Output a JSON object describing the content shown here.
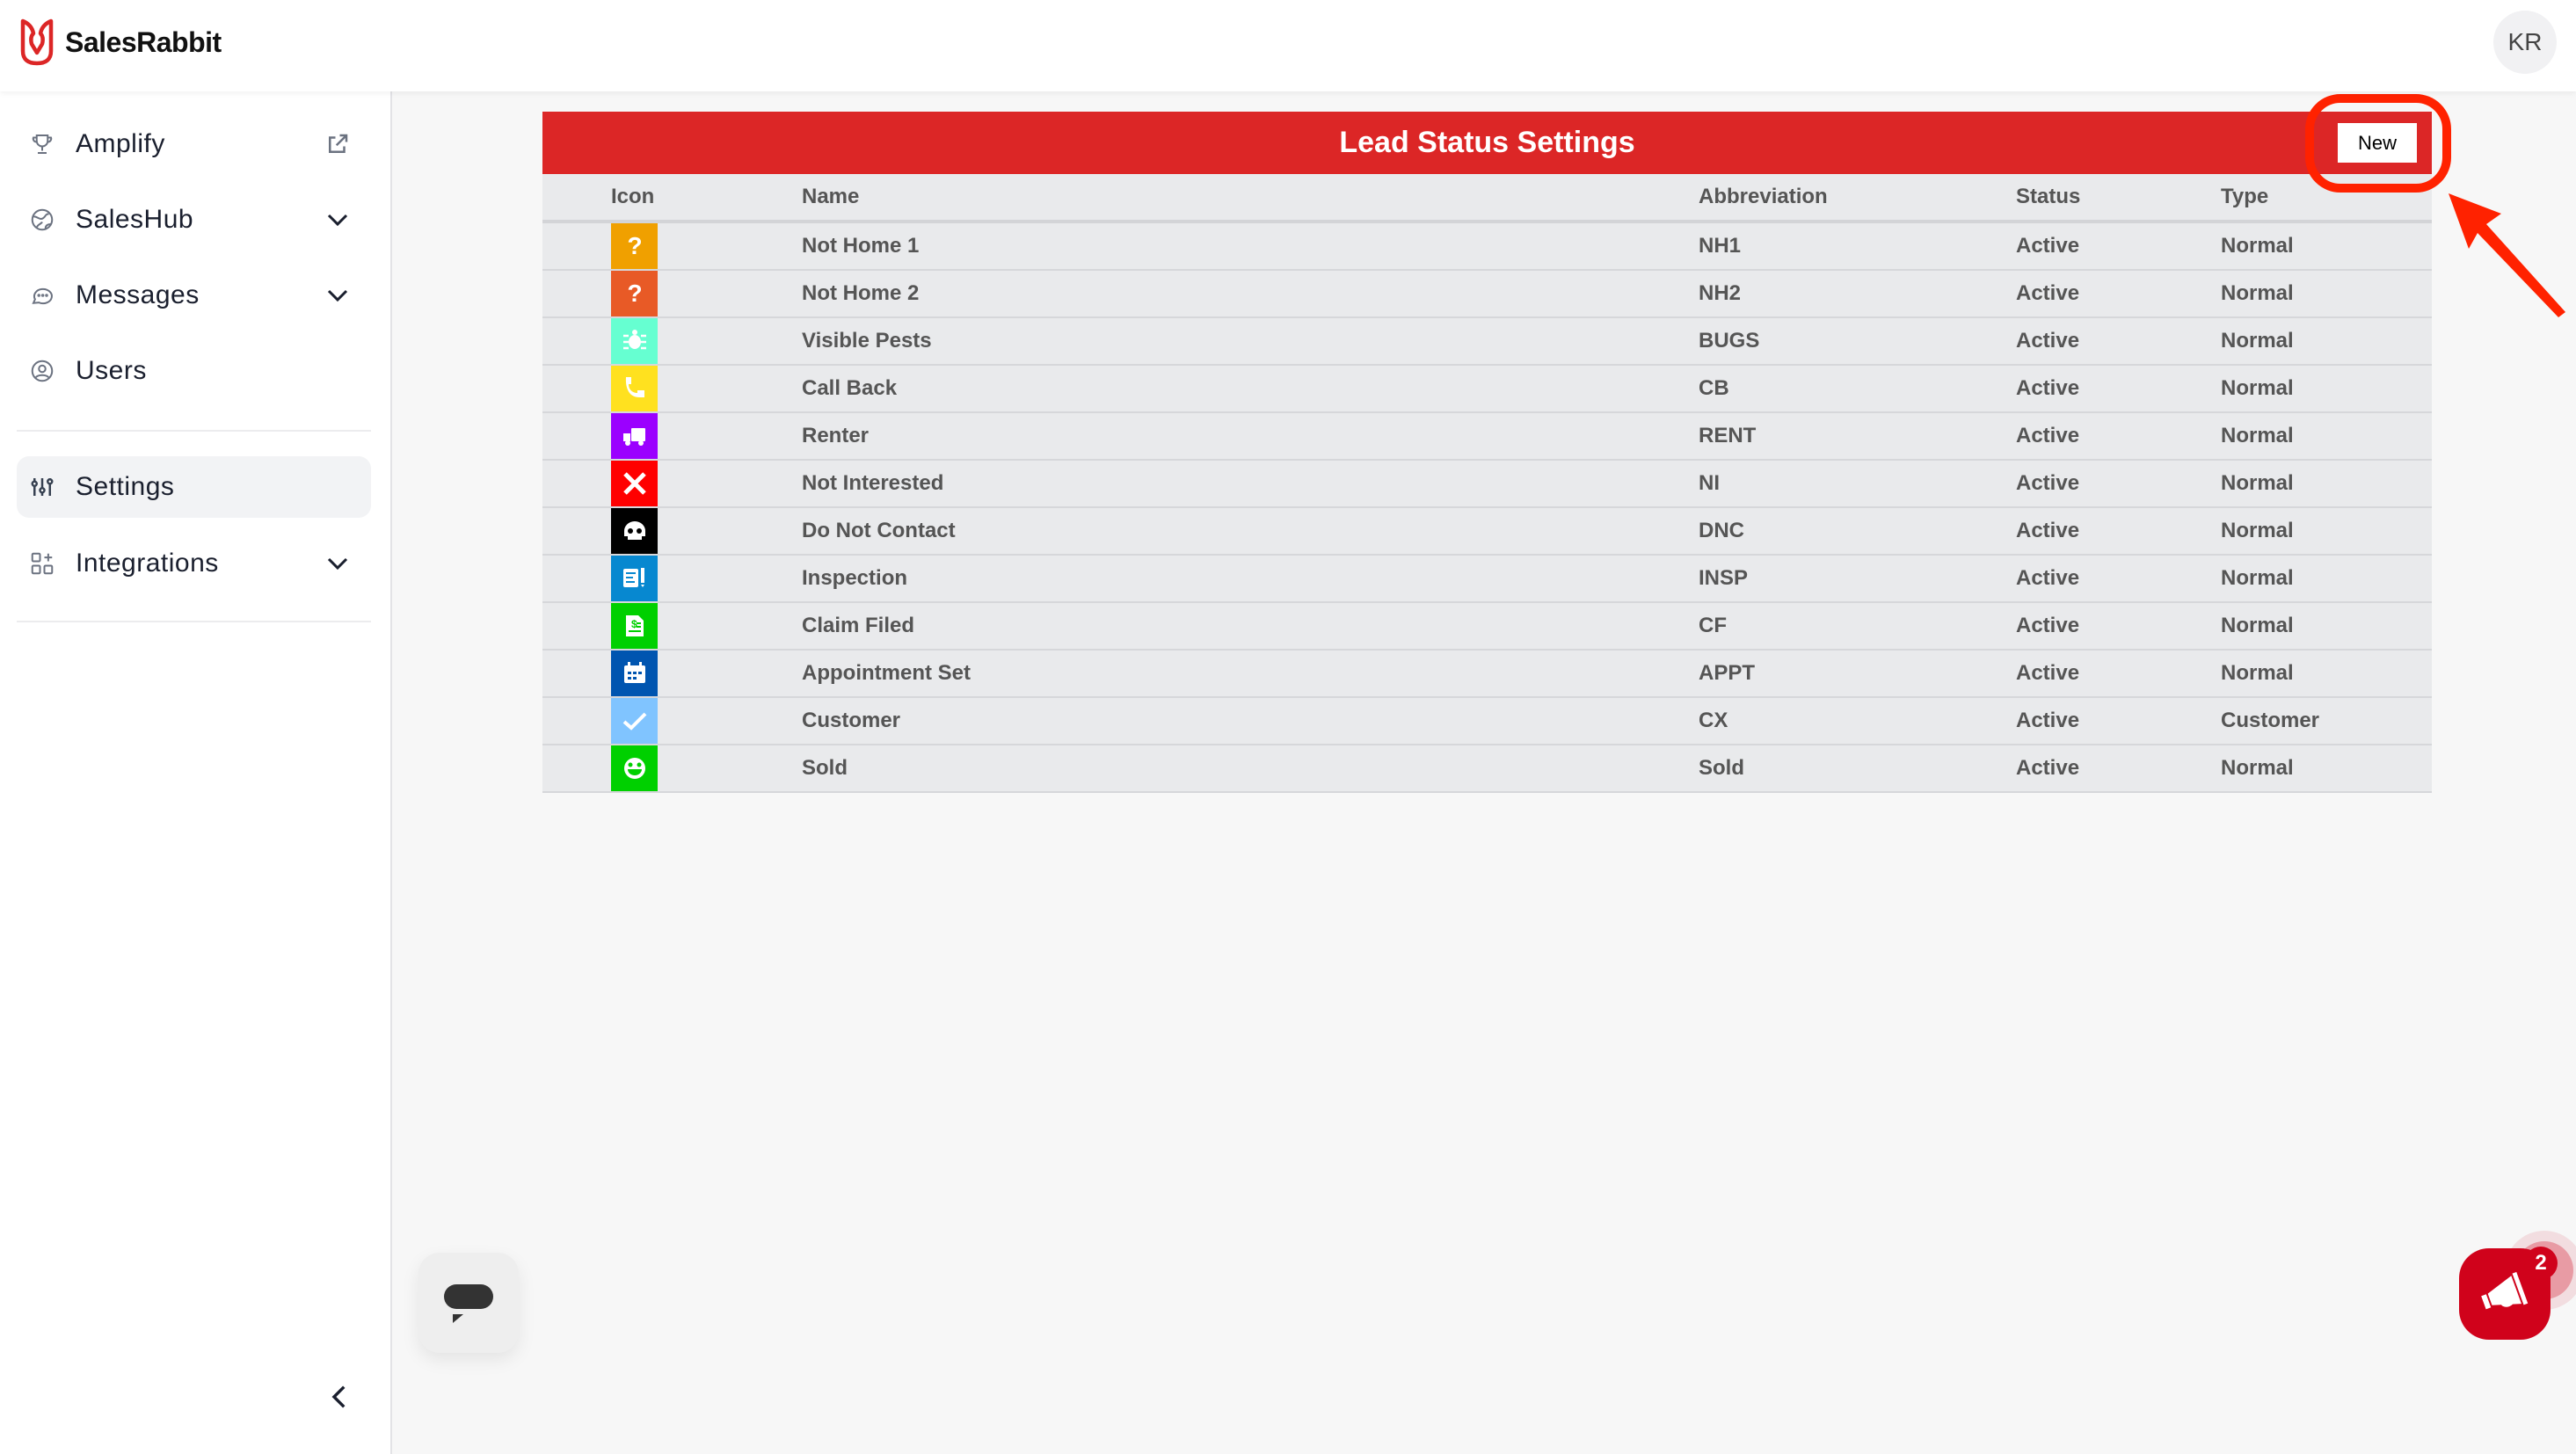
{
  "header": {
    "brand": "SalesRabbit",
    "avatar_initials": "KR",
    "brand_color": "#dc2626"
  },
  "sidebar": {
    "items": [
      {
        "label": "Amplify",
        "icon": "trophy-icon",
        "trail": "external-link-icon"
      },
      {
        "label": "SalesHub",
        "icon": "globe-icon",
        "trail": "chevron-down-icon"
      },
      {
        "label": "Messages",
        "icon": "chat-bubble-icon",
        "trail": "chevron-down-icon"
      },
      {
        "label": "Users",
        "icon": "user-circle-icon"
      },
      {
        "label": "Settings",
        "icon": "sliders-icon",
        "active": true
      },
      {
        "label": "Integrations",
        "icon": "apps-add-icon",
        "trail": "chevron-down-icon"
      }
    ]
  },
  "main": {
    "title": "Lead Status Settings",
    "new_label": "New",
    "columns": [
      "Icon",
      "Name",
      "Abbreviation",
      "Status",
      "Type"
    ],
    "rows": [
      {
        "icon": "question-icon",
        "color": "#f0a000",
        "name": "Not Home 1",
        "abbr": "NH1",
        "status": "Active",
        "type": "Normal"
      },
      {
        "icon": "question-icon",
        "color": "#e85a26",
        "name": "Not Home 2",
        "abbr": "NH2",
        "status": "Active",
        "type": "Normal"
      },
      {
        "icon": "bug-icon",
        "color": "#66ffd1",
        "name": "Visible Pests",
        "abbr": "BUGS",
        "status": "Active",
        "type": "Normal"
      },
      {
        "icon": "phone-icon",
        "color": "#ffe11f",
        "name": "Call Back",
        "abbr": "CB",
        "status": "Active",
        "type": "Normal"
      },
      {
        "icon": "truck-icon",
        "color": "#9b00ff",
        "name": "Renter",
        "abbr": "RENT",
        "status": "Active",
        "type": "Normal"
      },
      {
        "icon": "x-icon",
        "color": "#ff0000",
        "name": "Not Interested",
        "abbr": "NI",
        "status": "Active",
        "type": "Normal"
      },
      {
        "icon": "skull-icon",
        "color": "#000000",
        "name": "Do Not Contact",
        "abbr": "DNC",
        "status": "Active",
        "type": "Normal"
      },
      {
        "icon": "clipboard-alert-icon",
        "color": "#0788d0",
        "name": "Inspection",
        "abbr": "INSP",
        "status": "Active",
        "type": "Normal"
      },
      {
        "icon": "invoice-icon",
        "color": "#00d000",
        "name": "Claim Filed",
        "abbr": "CF",
        "status": "Active",
        "type": "Normal"
      },
      {
        "icon": "calendar-icon",
        "color": "#0055b0",
        "name": "Appointment Set",
        "abbr": "APPT",
        "status": "Active",
        "type": "Normal"
      },
      {
        "icon": "check-icon",
        "color": "#80c4ff",
        "name": "Customer",
        "abbr": "CX",
        "status": "Active",
        "type": "Customer"
      },
      {
        "icon": "smiley-icon",
        "color": "#00d000",
        "name": "Sold",
        "abbr": "Sold",
        "status": "Active",
        "type": "Normal"
      }
    ]
  },
  "widgets": {
    "announcement_badge": "2"
  }
}
